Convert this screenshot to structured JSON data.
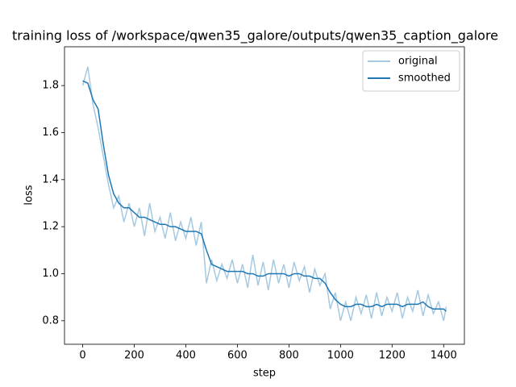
{
  "chart_data": {
    "type": "line",
    "title": "training loss of /workspace/qwen35_galore/outputs/qwen35_caption_galore",
    "x_label": "step",
    "y_label": "loss",
    "x": [
      0,
      20,
      40,
      60,
      80,
      100,
      120,
      140,
      160,
      180,
      200,
      220,
      240,
      260,
      280,
      300,
      320,
      340,
      360,
      380,
      400,
      420,
      440,
      460,
      480,
      500,
      520,
      540,
      560,
      580,
      600,
      620,
      640,
      660,
      680,
      700,
      720,
      740,
      760,
      780,
      800,
      820,
      840,
      860,
      880,
      900,
      920,
      940,
      960,
      980,
      1000,
      1020,
      1040,
      1060,
      1080,
      1100,
      1120,
      1140,
      1160,
      1180,
      1200,
      1220,
      1240,
      1260,
      1280,
      1300,
      1320,
      1340,
      1360,
      1380,
      1400,
      1410
    ],
    "series": [
      {
        "name": "original",
        "color": "#1f77b4",
        "alpha": 0.4,
        "values": [
          1.8,
          1.88,
          1.72,
          1.62,
          1.5,
          1.38,
          1.28,
          1.33,
          1.22,
          1.3,
          1.2,
          1.28,
          1.16,
          1.3,
          1.18,
          1.24,
          1.15,
          1.26,
          1.14,
          1.22,
          1.15,
          1.24,
          1.12,
          1.22,
          0.96,
          1.06,
          0.97,
          1.04,
          0.98,
          1.06,
          0.96,
          1.04,
          0.94,
          1.08,
          0.95,
          1.05,
          0.93,
          1.06,
          0.96,
          1.04,
          0.94,
          1.05,
          0.97,
          1.03,
          0.92,
          1.02,
          0.95,
          1.0,
          0.85,
          0.92,
          0.8,
          0.88,
          0.8,
          0.9,
          0.83,
          0.91,
          0.81,
          0.92,
          0.82,
          0.9,
          0.84,
          0.92,
          0.81,
          0.9,
          0.84,
          0.93,
          0.82,
          0.91,
          0.83,
          0.88,
          0.8,
          0.86
        ]
      },
      {
        "name": "smoothed",
        "color": "#1f77b4",
        "alpha": 1,
        "values": [
          1.82,
          1.81,
          1.74,
          1.7,
          1.55,
          1.42,
          1.34,
          1.3,
          1.28,
          1.28,
          1.26,
          1.24,
          1.24,
          1.23,
          1.22,
          1.21,
          1.21,
          1.2,
          1.2,
          1.19,
          1.18,
          1.18,
          1.18,
          1.17,
          1.1,
          1.04,
          1.03,
          1.02,
          1.01,
          1.01,
          1.01,
          1.01,
          1.0,
          1.0,
          0.99,
          0.99,
          1.0,
          1.0,
          1.0,
          1.0,
          0.99,
          1.0,
          1.0,
          0.99,
          0.99,
          0.98,
          0.98,
          0.96,
          0.92,
          0.89,
          0.87,
          0.86,
          0.86,
          0.87,
          0.87,
          0.86,
          0.86,
          0.87,
          0.86,
          0.87,
          0.87,
          0.87,
          0.86,
          0.87,
          0.87,
          0.87,
          0.88,
          0.86,
          0.85,
          0.85,
          0.85,
          0.84
        ]
      }
    ],
    "xlim": [
      -70.5,
      1480.5
    ],
    "ylim": [
      0.7,
      1.965
    ],
    "xticks": [
      0,
      200,
      400,
      600,
      800,
      1000,
      1200,
      1400
    ],
    "yticks": [
      0.8,
      {
        "value": 1,
        "label": "1.0"
      },
      1.2,
      1.4,
      1.6,
      1.8
    ],
    "grid": false,
    "legend": "upper right"
  }
}
